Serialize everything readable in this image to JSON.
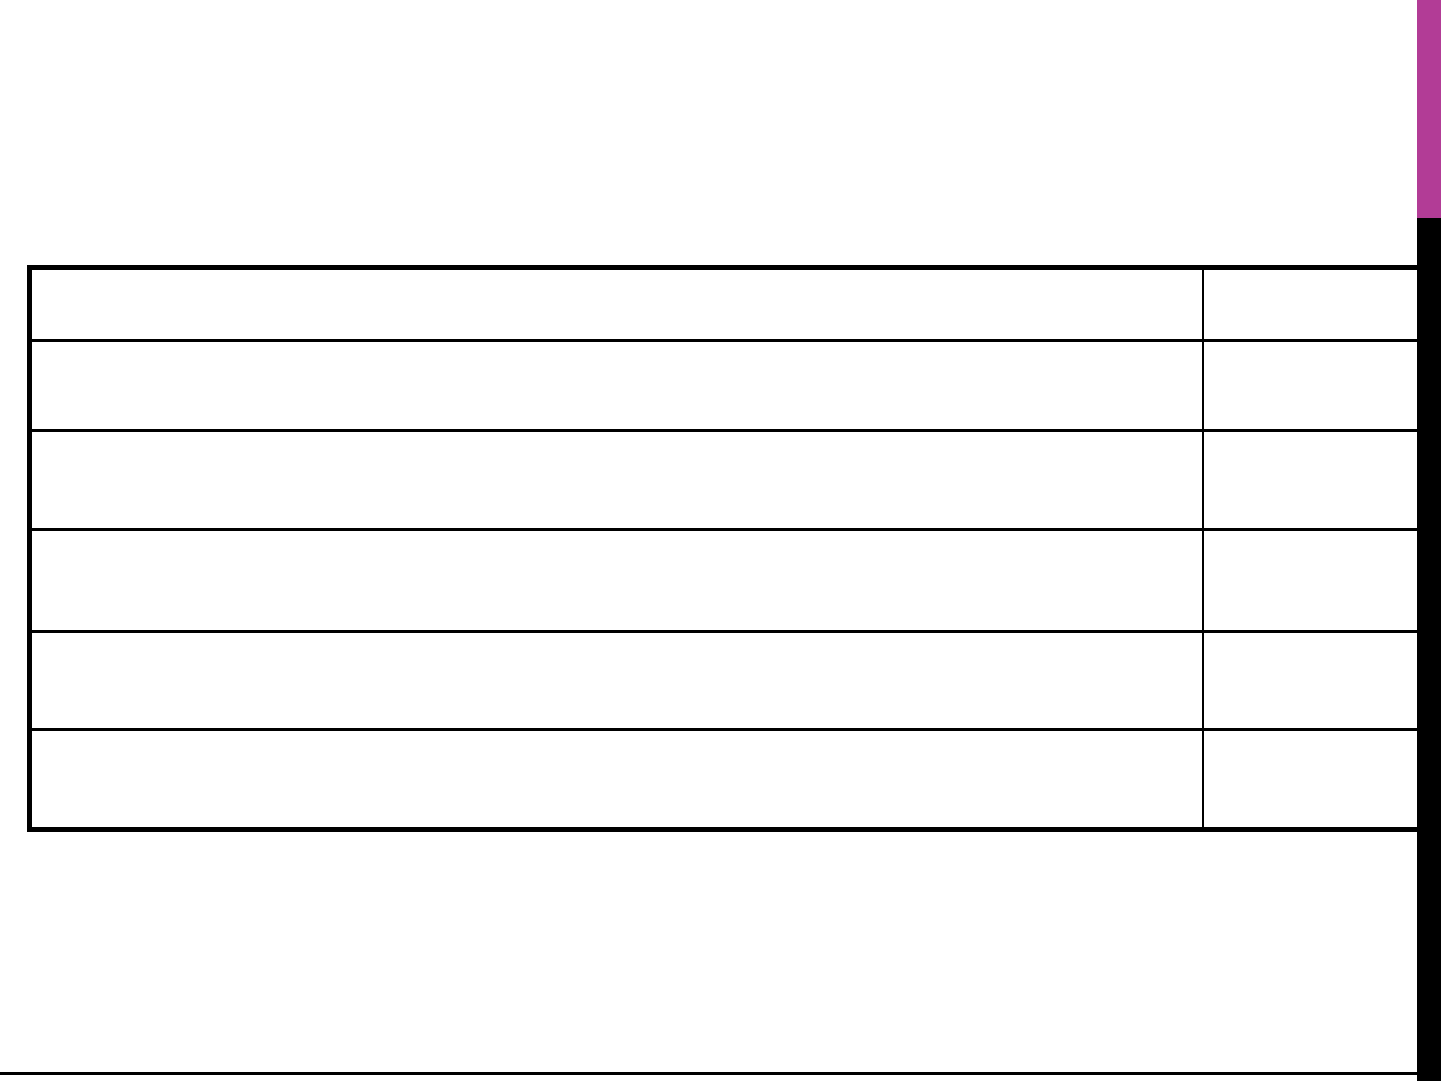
{
  "slide": {
    "background_color": "#FFFFFF",
    "accent_bar_color": "#B23C96",
    "edge_bar_color": "#000000",
    "footer_line_color": "#000000",
    "table": {
      "border_color": "#000000",
      "column_count": 2,
      "row_count": 6,
      "rows": [
        {
          "cells": [
            "",
            ""
          ]
        },
        {
          "cells": [
            "",
            ""
          ]
        },
        {
          "cells": [
            "",
            ""
          ]
        },
        {
          "cells": [
            "",
            ""
          ]
        },
        {
          "cells": [
            "",
            ""
          ]
        },
        {
          "cells": [
            "",
            ""
          ]
        }
      ]
    }
  }
}
